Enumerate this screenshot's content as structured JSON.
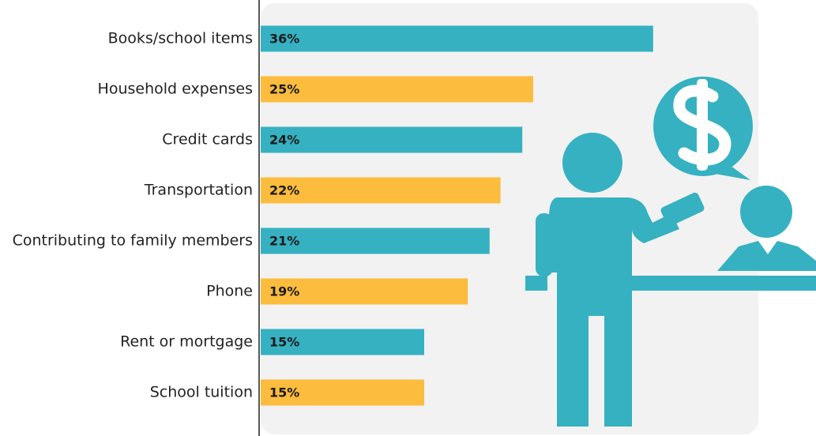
{
  "chart_data": {
    "type": "bar",
    "categories": [
      "Books/school items",
      "Household expenses",
      "Credit cards",
      "Transportation",
      "Contributing to family members",
      "Phone",
      "Rent or mortgage",
      "School tuition"
    ],
    "values": [
      36,
      25,
      24,
      22,
      21,
      19,
      15,
      15
    ],
    "value_labels": [
      "36%",
      "25%",
      "24%",
      "22%",
      "21%",
      "19%",
      "15%",
      "15%"
    ],
    "colors": [
      "#36b1c1",
      "#fcbc3e",
      "#36b1c1",
      "#fcbc3e",
      "#36b1c1",
      "#fcbc3e",
      "#36b1c1",
      "#fcbc3e"
    ]
  }
}
